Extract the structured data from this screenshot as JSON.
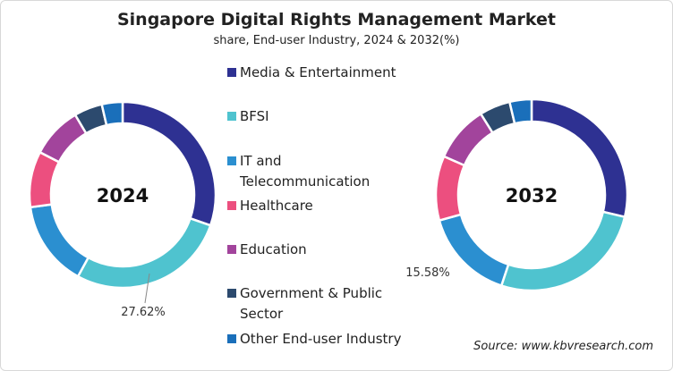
{
  "chart_data": [
    {
      "type": "pie",
      "title": "Singapore Digital Rights Management Market",
      "subtitle": "share, End-user Industry, 2024 & 2032(%)",
      "center_label": "2024",
      "categories": [
        "Media & Entertainment",
        "BFSI",
        "IT and Telecommunication",
        "Healthcare",
        "Education",
        "Government & Public Sector",
        "Other End-user Industry"
      ],
      "values": [
        30.3,
        27.62,
        14.9,
        9.7,
        8.9,
        4.9,
        3.6
      ],
      "data_labels": [
        {
          "category": "BFSI",
          "text": "27.62%"
        }
      ],
      "legend": "center"
    },
    {
      "type": "pie",
      "center_label": "2032",
      "categories": [
        "Media & Entertainment",
        "BFSI",
        "IT and Telecommunication",
        "Healthcare",
        "Education",
        "Government & Public Sector",
        "Other End-user Industry"
      ],
      "values": [
        28.7,
        26.4,
        15.58,
        10.9,
        9.5,
        5.2,
        3.7
      ],
      "data_labels": [
        {
          "category": "IT and Telecommunication",
          "text": "15.58%"
        }
      ],
      "legend": "center"
    }
  ],
  "title": "Singapore Digital Rights Management Market",
  "subtitle": "share, End-user Industry, 2024 & 2032(%)",
  "legend": [
    "Media & Entertainment",
    "BFSI",
    "IT and Telecommunication",
    "Healthcare",
    "Education",
    "Government & Public Sector",
    "Other End-user Industry"
  ],
  "colors": [
    "#2e3192",
    "#4fc3cf",
    "#2b8fd0",
    "#ec4f7f",
    "#a2449c",
    "#2c4a6e",
    "#1a6fba"
  ],
  "source": "Source: www.kbvresearch.com"
}
